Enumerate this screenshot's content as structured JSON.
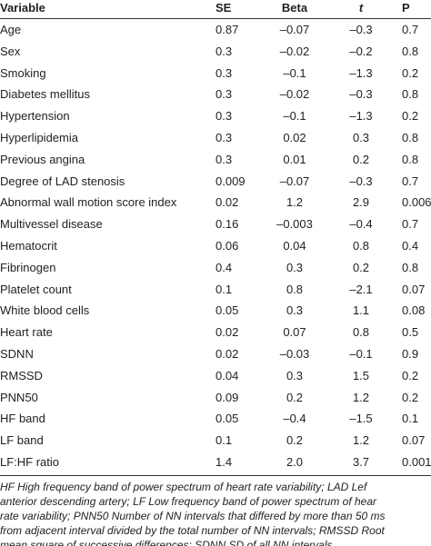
{
  "table": {
    "header": [
      "Variable",
      "SE",
      "Beta",
      "t",
      "P"
    ],
    "rows": [
      [
        "Age",
        "0.87",
        "–0.07",
        "–0.3",
        "0.7"
      ],
      [
        "Sex",
        "0.3",
        "–0.02",
        "–0.2",
        "0.8"
      ],
      [
        "Smoking",
        "0.3",
        "–0.1",
        "–1.3",
        "0.2"
      ],
      [
        "Diabetes mellitus",
        "0.3",
        "–0.02",
        "–0.3",
        "0.8"
      ],
      [
        "Hypertension",
        "0.3",
        "–0.1",
        "–1.3",
        "0.2"
      ],
      [
        "Hyperlipidemia",
        "0.3",
        "0.02",
        "0.3",
        "0.8"
      ],
      [
        "Previous angina",
        "0.3",
        "0.01",
        "0.2",
        "0.8"
      ],
      [
        "Degree of LAD stenosis",
        "0.009",
        "–0.07",
        "–0.3",
        "0.7"
      ],
      [
        "Abnormal wall motion score index",
        "0.02",
        "1.2",
        "2.9",
        "0.0060"
      ],
      [
        "Multivessel disease",
        "0.16",
        "–0.003",
        "–0.4",
        "0.7"
      ],
      [
        "Hematocrit",
        "0.06",
        "0.04",
        "0.8",
        "0.4"
      ],
      [
        "Fibrinogen",
        "0.4",
        "0.3",
        "0.2",
        "0.8"
      ],
      [
        "Platelet count",
        "0.1",
        "0.8",
        "–2.1",
        "0.07"
      ],
      [
        "White blood cells",
        "0.05",
        "0.3",
        "1.1",
        "0.08"
      ],
      [
        "Heart rate",
        "0.02",
        "0.07",
        "0.8",
        "0.5"
      ],
      [
        "SDNN",
        "0.02",
        "–0.03",
        "–0.1",
        "0.9"
      ],
      [
        "RMSSD",
        "0.04",
        "0.3",
        "1.5",
        "0.2"
      ],
      [
        "PNN50",
        "0.09",
        "0.2",
        "1.2",
        "0.2"
      ],
      [
        "HF band",
        "0.05",
        "–0.4",
        "–1.5",
        "0.1"
      ],
      [
        "LF band",
        "0.1",
        "0.2",
        "1.2",
        "0.07"
      ],
      [
        "LF:HF ratio",
        "1.4",
        "2.0",
        "3.7",
        "0.001"
      ]
    ]
  },
  "footnote": [
    "HF High frequency band of power spectrum of heart rate variability; LAD Lef",
    "anterior descending artery; LF Low frequency band of power spectrum of hear",
    "rate variability; PNN50 Number of NN intervals that differed by more than 50 ms",
    "from adjacent interval divided by the total number of NN intervals; RMSSD Root",
    "mean square of successive differences; SDNN SD of all NN intervals"
  ]
}
